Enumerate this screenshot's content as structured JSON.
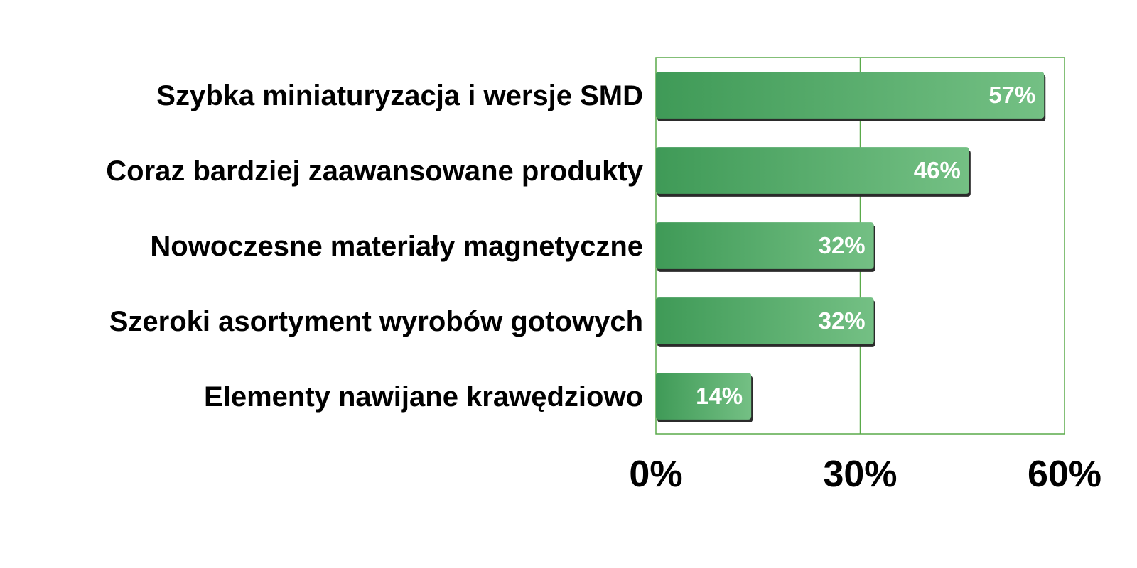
{
  "chart_data": {
    "type": "bar",
    "orientation": "horizontal",
    "categories": [
      "Szybka miniaturyzacja i wersje SMD",
      "Coraz bardziej zaawansowane produkty",
      "Nowoczesne materiały magnetyczne",
      "Szeroki asortyment wyrobów gotowych",
      "Elementy nawijane krawędziowo"
    ],
    "values": [
      57,
      46,
      32,
      32,
      14
    ],
    "data_labels": [
      "57%",
      "46%",
      "32%",
      "32%",
      "14%"
    ],
    "x_ticks": [
      0,
      30,
      60
    ],
    "x_tick_labels": [
      "0%",
      "30%",
      "60%"
    ],
    "xlim": [
      0,
      60
    ],
    "title": "",
    "xlabel": "",
    "ylabel": "",
    "grid": "vertical at 30%",
    "legend": "none",
    "colors": {
      "bar_dark": "#3f9a57",
      "bar_light": "#6fbf80",
      "bar_shadow": "#2b2b2b",
      "frame": "#5aaa4a"
    }
  }
}
